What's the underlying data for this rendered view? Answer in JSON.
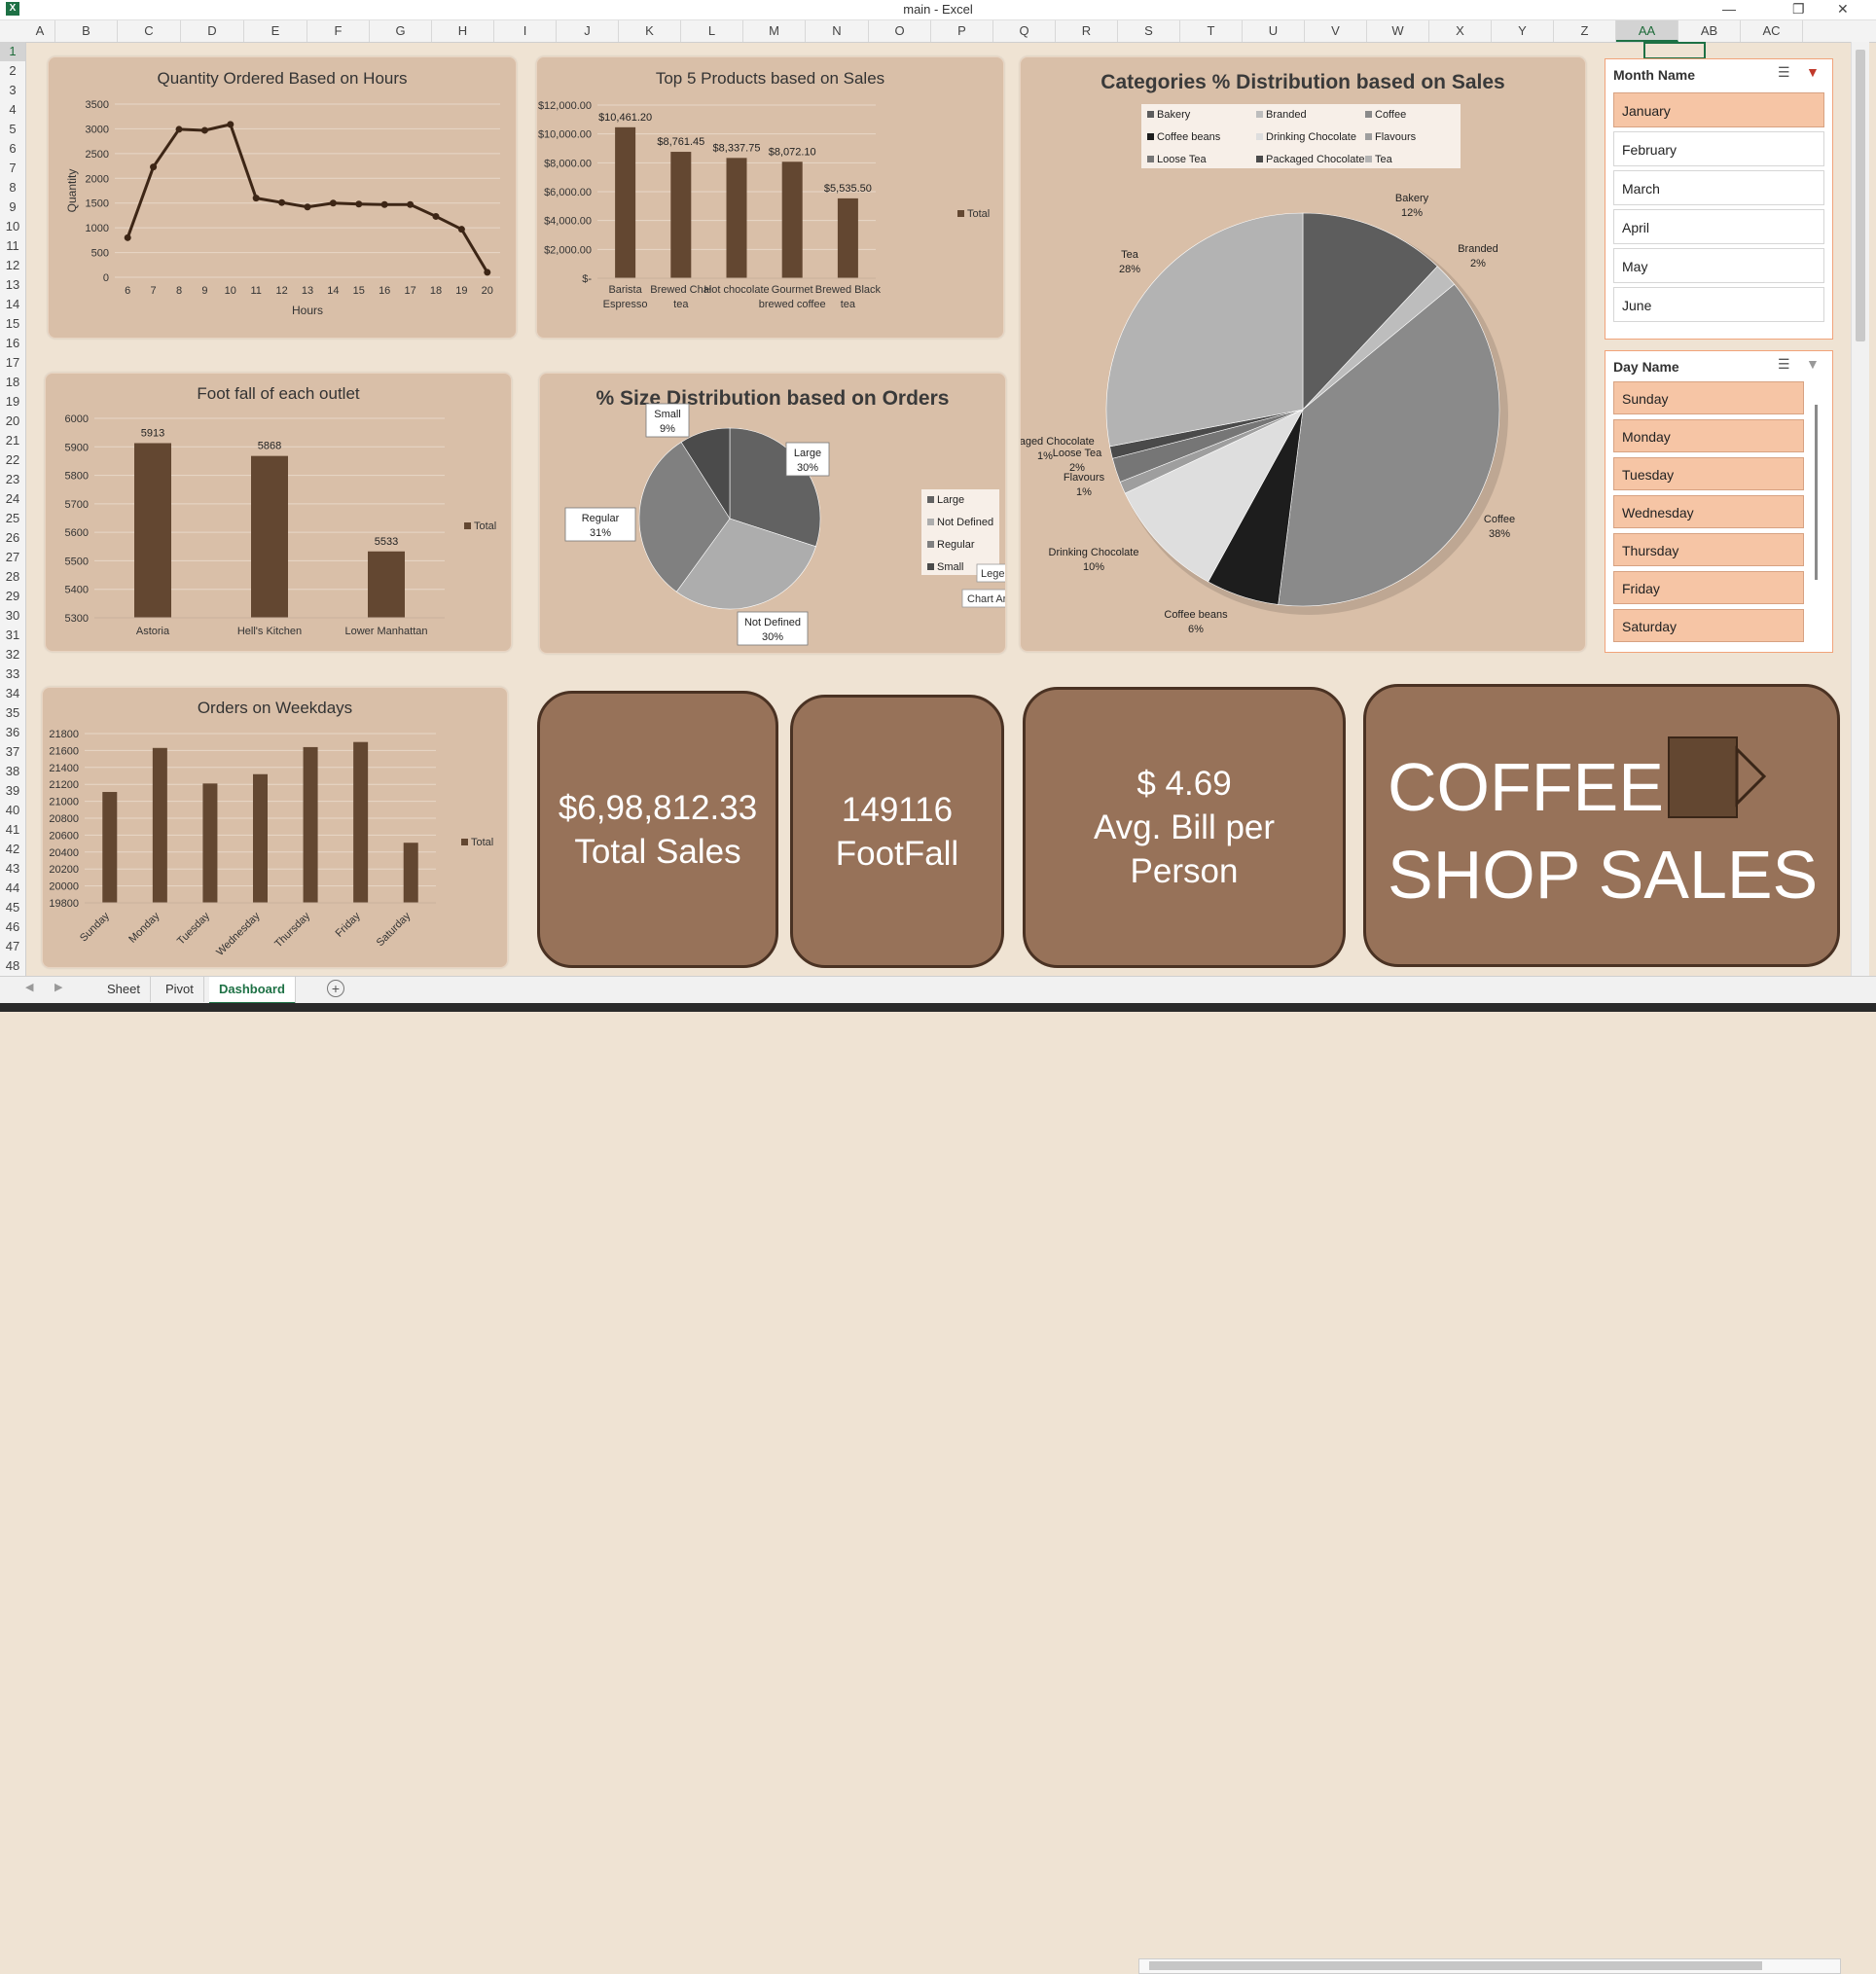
{
  "window": {
    "title": "main - Excel",
    "app_icon": "excel-icon"
  },
  "columns": [
    "A",
    "B",
    "C",
    "D",
    "E",
    "F",
    "G",
    "H",
    "I",
    "J",
    "K",
    "L",
    "M",
    "N",
    "O",
    "P",
    "Q",
    "R",
    "S",
    "T",
    "U",
    "V",
    "W",
    "X",
    "Y",
    "Z",
    "AA",
    "AB",
    "AC"
  ],
  "selected_column": "AA",
  "rows": [
    "1",
    "2",
    "3",
    "4",
    "5",
    "6",
    "7",
    "8",
    "9",
    "10",
    "11",
    "12",
    "13",
    "14",
    "15",
    "16",
    "17",
    "18",
    "19",
    "20",
    "21",
    "22",
    "23",
    "24",
    "25",
    "26",
    "27",
    "28",
    "29",
    "30",
    "31",
    "32",
    "33",
    "34",
    "35",
    "36",
    "37",
    "38",
    "39",
    "40",
    "41",
    "42",
    "43",
    "44",
    "45",
    "46",
    "47",
    "48"
  ],
  "charts": {
    "hours": {
      "title": "Quantity Ordered Based on Hours",
      "xlabel": "Hours",
      "ylabel": "Quantity"
    },
    "top5": {
      "title": "Top 5 Products based on Sales",
      "legend": "Total"
    },
    "categories": {
      "title": "Categories % Distribution based on Sales"
    },
    "footfall": {
      "title": "Foot fall of each outlet",
      "legend": "Total"
    },
    "size": {
      "title": "% Size Distribution based on Orders",
      "tooltip_legend": "Legend",
      "tooltip_chartarea": "Chart Area"
    },
    "weekdays": {
      "title": "Orders on Weekdays",
      "legend": "Total"
    }
  },
  "chart_data": [
    {
      "type": "line",
      "title": "Quantity Ordered Based on Hours",
      "xlabel": "Hours",
      "ylabel": "Quantity",
      "x": [
        6,
        7,
        8,
        9,
        10,
        11,
        12,
        13,
        14,
        15,
        16,
        17,
        18,
        19,
        20
      ],
      "values": [
        800,
        2230,
        2990,
        2970,
        3090,
        1600,
        1510,
        1420,
        1500,
        1480,
        1470,
        1470,
        1230,
        970,
        100
      ],
      "ylim": [
        0,
        3500
      ],
      "yticks": [
        "0",
        "500",
        "1000",
        "1500",
        "2000",
        "2500",
        "3000",
        "3500"
      ]
    },
    {
      "type": "bar",
      "title": "Top 5 Products based on Sales",
      "categories": [
        "Barista Espresso",
        "Brewed Chai tea",
        "Hot chocolate",
        "Gourmet brewed coffee",
        "Brewed Black tea"
      ],
      "values": [
        10461.2,
        8761.45,
        8337.75,
        8072.1,
        5535.5
      ],
      "data_labels": [
        "$10,461.20",
        "$8,761.45",
        "$8,337.75",
        "$8,072.10",
        "$5,535.50"
      ],
      "ylim": [
        0,
        12000
      ],
      "yticks": [
        "$-",
        "$2,000.00",
        "$4,000.00",
        "$6,000.00",
        "$8,000.00",
        "$10,000.00",
        "$12,000.00"
      ],
      "legend": "Total"
    },
    {
      "type": "pie",
      "title": "Categories % Distribution based on Sales",
      "legend": [
        "Bakery",
        "Branded",
        "Coffee",
        "Coffee beans",
        "Drinking Chocolate",
        "Flavours",
        "Loose Tea",
        "Packaged Chocolate",
        "Tea"
      ],
      "slices": [
        {
          "name": "Bakery",
          "pct": 12,
          "label": "12%",
          "color": "#5d5d5d"
        },
        {
          "name": "Branded",
          "pct": 2,
          "label": "2%",
          "color": "#bdbdbd"
        },
        {
          "name": "Coffee",
          "pct": 38,
          "label": "38%",
          "color": "#8a8a8a"
        },
        {
          "name": "Coffee beans",
          "pct": 6,
          "label": "6%",
          "color": "#1d1d1d"
        },
        {
          "name": "Drinking Chocolate",
          "pct": 10,
          "label": "10%",
          "color": "#dedede"
        },
        {
          "name": "Flavours",
          "pct": 1,
          "label": "1%",
          "color": "#9e9e9e"
        },
        {
          "name": "Loose Tea",
          "pct": 2,
          "label": "2%",
          "color": "#767676"
        },
        {
          "name": "Packaged Chocolate",
          "pct": 1,
          "label": "1%",
          "color": "#4a4a4a"
        },
        {
          "name": "Tea",
          "pct": 28,
          "label": "28%",
          "color": "#b3b3b3"
        }
      ]
    },
    {
      "type": "bar",
      "title": "Foot fall of each outlet",
      "categories": [
        "Astoria",
        "Hell's Kitchen",
        "Lower Manhattan"
      ],
      "values": [
        5913,
        5868,
        5533
      ],
      "data_labels": [
        "5913",
        "5868",
        "5533"
      ],
      "ylim": [
        5300,
        6000
      ],
      "yticks": [
        "5300",
        "5400",
        "5500",
        "5600",
        "5700",
        "5800",
        "5900",
        "6000"
      ],
      "legend": "Total"
    },
    {
      "type": "pie",
      "title": "% Size Distribution based on Orders",
      "legend": [
        "Large",
        "Not Defined",
        "Regular",
        "Small"
      ],
      "slices": [
        {
          "name": "Large",
          "pct": 30,
          "label": "30%",
          "color": "#626262"
        },
        {
          "name": "Not Defined",
          "pct": 30,
          "label": "30%",
          "color": "#adadad"
        },
        {
          "name": "Regular",
          "pct": 31,
          "label": "31%",
          "color": "#808080"
        },
        {
          "name": "Small",
          "pct": 9,
          "label": "9%",
          "color": "#4b4b4b"
        }
      ]
    },
    {
      "type": "bar",
      "title": "Orders on Weekdays",
      "categories": [
        "Sunday",
        "Monday",
        "Tuesday",
        "Wednesday",
        "Thursday",
        "Friday",
        "Saturday"
      ],
      "values": [
        21110,
        21630,
        21210,
        21320,
        21640,
        21700,
        20510
      ],
      "ylim": [
        19800,
        21800
      ],
      "yticks": [
        "19800",
        "20000",
        "20200",
        "20400",
        "20600",
        "20800",
        "21000",
        "21200",
        "21400",
        "21600",
        "21800"
      ],
      "legend": "Total"
    }
  ],
  "kpis": {
    "sales_value": "$6,98,812.33",
    "sales_label": "Total Sales",
    "footfall_value": "149116",
    "footfall_label": "FootFall",
    "bill_value": "$ 4.69",
    "bill_label1": "Avg. Bill per",
    "bill_label2": "Person",
    "brand_line1": "COFFEE",
    "brand_line2": "SHOP SALES",
    "brand_icon": "coffee-mug-icon"
  },
  "slicer_month": {
    "title": "Month Name",
    "items": [
      "January",
      "February",
      "March",
      "April",
      "May",
      "June"
    ],
    "selected": [
      "January"
    ]
  },
  "slicer_day": {
    "title": "Day Name",
    "items": [
      "Sunday",
      "Monday",
      "Tuesday",
      "Wednesday",
      "Thursday",
      "Friday",
      "Saturday"
    ],
    "selected": [
      "Sunday",
      "Monday",
      "Tuesday",
      "Wednesday",
      "Thursday",
      "Friday",
      "Saturday"
    ]
  },
  "sheet_tabs": [
    "Sheet",
    "Pivot",
    "Dashboard"
  ],
  "active_tab": "Dashboard",
  "colors": {
    "bar": "#634731",
    "panel": "#d9bfa8",
    "kpi": "#977259",
    "background": "#efe3d3",
    "slicer_selected": "#f6c5a5"
  }
}
